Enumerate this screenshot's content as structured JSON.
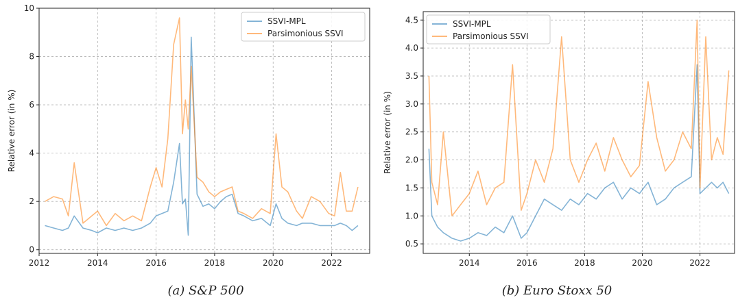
{
  "colors": {
    "ssvi_mpl": "#1f77b4",
    "parsimonious": "#ff7f0e",
    "grid": "#b0b0b0",
    "axes": "#222222"
  },
  "captions": {
    "left": "(a) S&P 500",
    "right": "(b) Euro Stoxx 50"
  },
  "chart_data": [
    {
      "type": "line",
      "title": "",
      "caption": "(a) S&P 500",
      "xlabel": "",
      "ylabel": "Relative error (in %)",
      "xlim": [
        2012.0,
        2023.3
      ],
      "ylim": [
        -0.15,
        10.0
      ],
      "xticks": [
        2012,
        2014,
        2016,
        2018,
        2020,
        2022
      ],
      "xtick_labels": [
        "2012",
        "2014",
        "2016",
        "2018",
        "2020",
        "2022"
      ],
      "yticks": [
        0,
        2,
        4,
        6,
        8,
        10
      ],
      "ytick_labels": [
        "0",
        "2",
        "4",
        "6",
        "8",
        "10"
      ],
      "grid": true,
      "legend": {
        "position": "top-right",
        "entries": [
          "SSVI-MPL",
          "Parsimonious SSVI"
        ]
      },
      "series": [
        {
          "name": "SSVI-MPL",
          "color": "#1f77b4",
          "alpha": 0.55,
          "x": [
            2012.2,
            2012.5,
            2012.8,
            2013.0,
            2013.2,
            2013.5,
            2013.8,
            2014.0,
            2014.3,
            2014.6,
            2014.9,
            2015.2,
            2015.5,
            2015.8,
            2016.0,
            2016.2,
            2016.4,
            2016.6,
            2016.8,
            2016.9,
            2017.0,
            2017.1,
            2017.2,
            2017.4,
            2017.6,
            2017.8,
            2018.0,
            2018.2,
            2018.4,
            2018.6,
            2018.8,
            2019.0,
            2019.3,
            2019.6,
            2019.9,
            2020.1,
            2020.3,
            2020.5,
            2020.8,
            2021.0,
            2021.3,
            2021.6,
            2021.9,
            2022.1,
            2022.3,
            2022.5,
            2022.7,
            2022.9
          ],
          "y": [
            1.0,
            0.9,
            0.8,
            0.9,
            1.4,
            0.9,
            0.8,
            0.7,
            0.9,
            0.8,
            0.9,
            0.8,
            0.9,
            1.1,
            1.4,
            1.5,
            1.6,
            2.8,
            4.4,
            1.9,
            2.1,
            0.6,
            8.8,
            2.3,
            1.8,
            1.9,
            1.7,
            2.0,
            2.2,
            2.3,
            1.5,
            1.4,
            1.2,
            1.3,
            1.0,
            1.9,
            1.3,
            1.1,
            1.0,
            1.1,
            1.1,
            1.0,
            1.0,
            1.0,
            1.1,
            1.0,
            0.8,
            1.0
          ]
        },
        {
          "name": "Parsimonious SSVI",
          "color": "#ff7f0e",
          "alpha": 0.55,
          "x": [
            2012.2,
            2012.5,
            2012.8,
            2013.0,
            2013.2,
            2013.5,
            2013.8,
            2014.0,
            2014.3,
            2014.6,
            2014.9,
            2015.2,
            2015.5,
            2015.8,
            2016.0,
            2016.2,
            2016.4,
            2016.6,
            2016.8,
            2016.9,
            2017.0,
            2017.1,
            2017.2,
            2017.4,
            2017.6,
            2017.8,
            2018.0,
            2018.2,
            2018.4,
            2018.6,
            2018.8,
            2019.0,
            2019.3,
            2019.6,
            2019.9,
            2020.1,
            2020.3,
            2020.5,
            2020.8,
            2021.0,
            2021.3,
            2021.6,
            2021.9,
            2022.1,
            2022.3,
            2022.5,
            2022.7,
            2022.9
          ],
          "y": [
            2.0,
            2.2,
            2.1,
            1.4,
            3.6,
            1.1,
            1.4,
            1.6,
            1.0,
            1.5,
            1.2,
            1.4,
            1.2,
            2.6,
            3.4,
            2.6,
            4.6,
            8.5,
            9.6,
            4.8,
            6.2,
            5.0,
            7.6,
            3.0,
            2.8,
            2.4,
            2.2,
            2.4,
            2.5,
            2.6,
            1.6,
            1.5,
            1.3,
            1.7,
            1.5,
            4.8,
            2.6,
            2.4,
            1.6,
            1.3,
            2.2,
            2.0,
            1.5,
            1.4,
            3.2,
            1.6,
            1.6,
            2.6
          ]
        }
      ]
    },
    {
      "type": "line",
      "title": "",
      "caption": "(b) Euro Stoxx 50",
      "xlabel": "",
      "ylabel": "Relative error (in %)",
      "xlim": [
        2012.4,
        2023.2
      ],
      "ylim": [
        0.33,
        4.65
      ],
      "xticks": [
        2014,
        2016,
        2018,
        2020,
        2022
      ],
      "xtick_labels": [
        "2014",
        "2016",
        "2018",
        "2020",
        "2022"
      ],
      "yticks": [
        0.5,
        1.0,
        1.5,
        2.0,
        2.5,
        3.0,
        3.5,
        4.0,
        4.5
      ],
      "ytick_labels": [
        "0.5",
        "1.0",
        "1.5",
        "2.0",
        "2.5",
        "3.0",
        "3.5",
        "4.0",
        "4.5"
      ],
      "grid": true,
      "legend": {
        "position": "top-left",
        "entries": [
          "SSVI-MPL",
          "Parsimonious SSVI"
        ]
      },
      "series": [
        {
          "name": "SSVI-MPL",
          "color": "#1f77b4",
          "alpha": 0.55,
          "x": [
            2012.6,
            2012.7,
            2012.9,
            2013.1,
            2013.4,
            2013.7,
            2014.0,
            2014.3,
            2014.6,
            2014.9,
            2015.2,
            2015.5,
            2015.8,
            2016.0,
            2016.3,
            2016.6,
            2016.9,
            2017.2,
            2017.5,
            2017.8,
            2018.1,
            2018.4,
            2018.7,
            2019.0,
            2019.3,
            2019.6,
            2019.9,
            2020.2,
            2020.5,
            2020.8,
            2021.1,
            2021.4,
            2021.7,
            2021.9,
            2022.0,
            2022.2,
            2022.4,
            2022.6,
            2022.8,
            2023.0
          ],
          "y": [
            2.2,
            1.0,
            0.8,
            0.7,
            0.6,
            0.55,
            0.6,
            0.7,
            0.65,
            0.8,
            0.7,
            1.0,
            0.6,
            0.7,
            1.0,
            1.3,
            1.2,
            1.1,
            1.3,
            1.2,
            1.4,
            1.3,
            1.5,
            1.6,
            1.3,
            1.5,
            1.4,
            1.6,
            1.2,
            1.3,
            1.5,
            1.6,
            1.7,
            3.7,
            1.4,
            1.5,
            1.6,
            1.5,
            1.6,
            1.4
          ]
        },
        {
          "name": "Parsimonious SSVI",
          "color": "#ff7f0e",
          "alpha": 0.55,
          "x": [
            2012.6,
            2012.7,
            2012.9,
            2013.1,
            2013.4,
            2013.7,
            2014.0,
            2014.3,
            2014.6,
            2014.9,
            2015.2,
            2015.5,
            2015.8,
            2016.0,
            2016.3,
            2016.6,
            2016.9,
            2017.2,
            2017.5,
            2017.8,
            2018.1,
            2018.4,
            2018.7,
            2019.0,
            2019.3,
            2019.6,
            2019.9,
            2020.2,
            2020.5,
            2020.8,
            2021.1,
            2021.4,
            2021.7,
            2021.9,
            2022.0,
            2022.2,
            2022.4,
            2022.6,
            2022.8,
            2023.0
          ],
          "y": [
            3.5,
            1.6,
            1.2,
            2.5,
            1.0,
            1.2,
            1.4,
            1.8,
            1.2,
            1.5,
            1.6,
            3.7,
            1.1,
            1.4,
            2.0,
            1.6,
            2.2,
            4.2,
            2.0,
            1.6,
            2.0,
            2.3,
            1.8,
            2.4,
            2.0,
            1.7,
            1.9,
            3.4,
            2.4,
            1.8,
            2.0,
            2.5,
            2.2,
            4.5,
            1.5,
            4.2,
            2.0,
            2.4,
            2.1,
            3.6
          ]
        }
      ]
    }
  ]
}
